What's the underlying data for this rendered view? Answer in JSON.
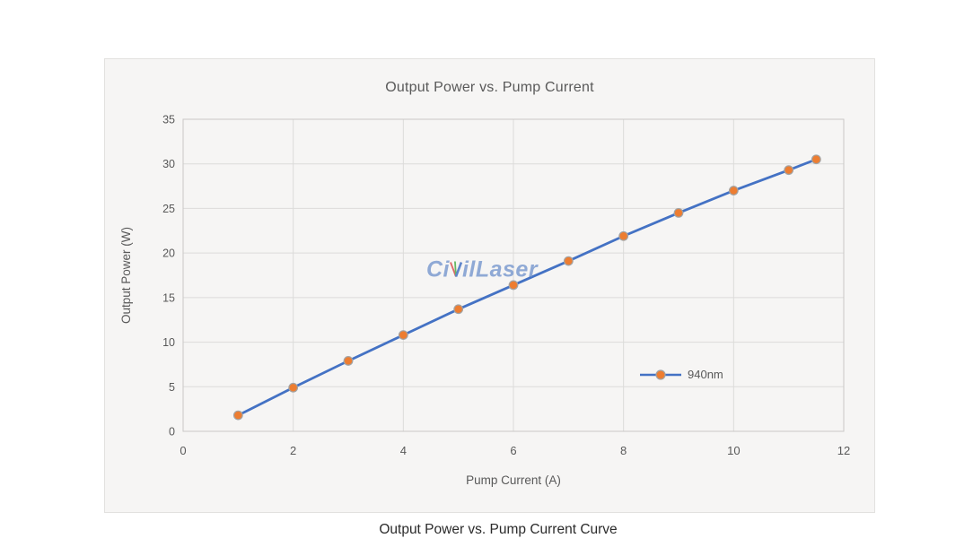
{
  "page": {
    "caption": "Output Power vs. Pump Current Curve"
  },
  "chart": {
    "title": "Output Power vs. Pump Current",
    "legend_label": "940nm",
    "watermark": {
      "full": "CivilLaser",
      "part1": "Ci",
      "part2": "ilLaser"
    }
  },
  "chart_data": {
    "type": "line",
    "title": "Output Power vs. Pump Current",
    "xlabel": "Pump Current (A)",
    "ylabel": "Output Power (W)",
    "series": [
      {
        "name": "940nm",
        "x": [
          1,
          2,
          3,
          4,
          5,
          6,
          7,
          8,
          9,
          10,
          11,
          11.5
        ],
        "y": [
          1.8,
          4.9,
          7.9,
          10.8,
          13.7,
          16.4,
          19.1,
          21.9,
          24.5,
          27.0,
          29.3,
          30.5
        ]
      }
    ],
    "xlim": [
      0,
      12
    ],
    "ylim": [
      0,
      35
    ],
    "xticks": [
      0,
      2,
      4,
      6,
      8,
      10,
      12
    ],
    "yticks": [
      0,
      5,
      10,
      15,
      20,
      25,
      30,
      35
    ],
    "grid": true,
    "legend_position": "inside-right-lower"
  },
  "colors": {
    "line": "#4472C4",
    "marker_fill": "#ED7D31",
    "marker_stroke": "#a3a3a3",
    "grid": "#dcdbda",
    "plot_border": "#c9c8c6",
    "axis_text": "#595959",
    "title_text": "#595959",
    "caption_text": "#2b2b2b",
    "card_bg": "#f6f5f4",
    "watermark_blue": "#7e9cd0",
    "watermark_ray_red": "#d94f4f",
    "watermark_ray_green": "#4cae4c",
    "watermark_ray_blue": "#4472c4"
  }
}
